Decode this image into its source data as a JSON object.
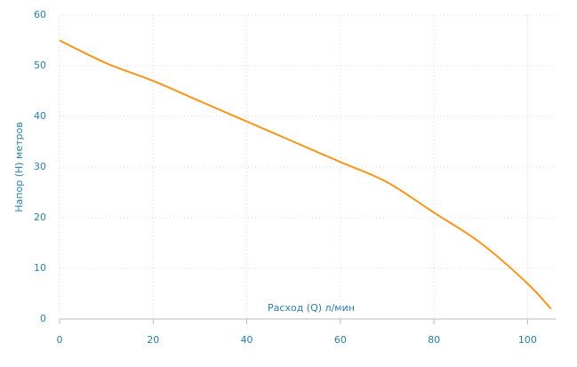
{
  "chart_data": {
    "type": "line",
    "x_label": "Расход (Q) л/мин",
    "y_label": "Напор (H) метров",
    "x": [
      0,
      10,
      20,
      30,
      40,
      50,
      60,
      70,
      80,
      90,
      100,
      105
    ],
    "series": [
      {
        "color": "#f7941d",
        "values": [
          55,
          50.5,
          47,
          43,
          39,
          35,
          31,
          27,
          21,
          15,
          7,
          2
        ]
      }
    ],
    "xlim": [
      0,
      106
    ],
    "xticks": [
      0,
      20,
      40,
      60,
      80,
      100
    ],
    "ylim": [
      0,
      60
    ],
    "yticks": [
      0,
      10,
      20,
      30,
      40,
      50,
      60
    ],
    "grid": true
  }
}
